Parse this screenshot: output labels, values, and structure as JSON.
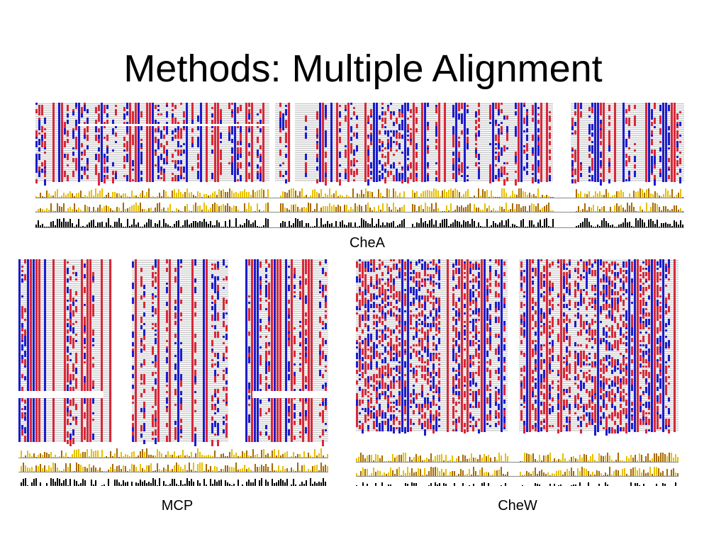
{
  "slide": {
    "title": "Methods: Multiple Alignment"
  },
  "figures": [
    {
      "id": "chea",
      "caption": "CheA"
    },
    {
      "id": "mcp",
      "caption": "MCP"
    },
    {
      "id": "chew",
      "caption": "CheW"
    }
  ],
  "colors": {
    "residue_red": "#d8283a",
    "residue_blue": "#1c1ccc",
    "background_dots": "#c8c8c8",
    "conservation_gold": "#e6c000",
    "quality_brown": "#a86a00",
    "consensus_black": "#000000"
  }
}
